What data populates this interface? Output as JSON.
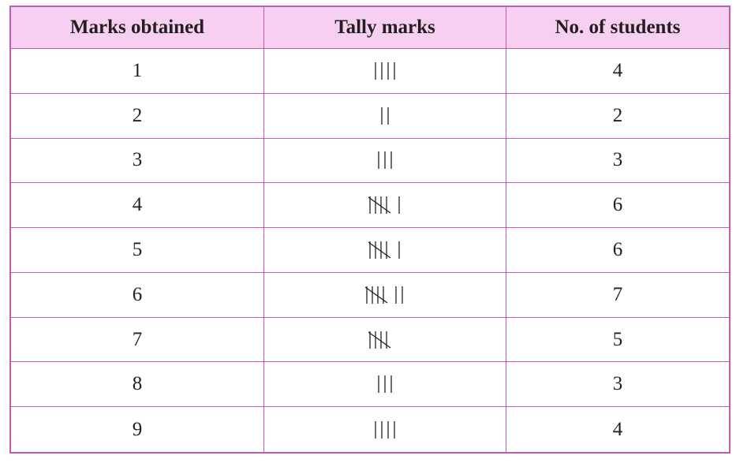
{
  "table": {
    "headers": [
      "Marks obtained",
      "Tally marks",
      "No. of students"
    ],
    "rows": [
      {
        "marks": "1",
        "tally": {
          "fives": 0,
          "ones": 4
        },
        "students": "4"
      },
      {
        "marks": "2",
        "tally": {
          "fives": 0,
          "ones": 2
        },
        "students": "2"
      },
      {
        "marks": "3",
        "tally": {
          "fives": 0,
          "ones": 3
        },
        "students": "3"
      },
      {
        "marks": "4",
        "tally": {
          "fives": 1,
          "ones": 1
        },
        "students": "6"
      },
      {
        "marks": "5",
        "tally": {
          "fives": 1,
          "ones": 1
        },
        "students": "6"
      },
      {
        "marks": "6",
        "tally": {
          "fives": 1,
          "ones": 2
        },
        "students": "7"
      },
      {
        "marks": "7",
        "tally": {
          "fives": 1,
          "ones": 0
        },
        "students": "5"
      },
      {
        "marks": "8",
        "tally": {
          "fives": 0,
          "ones": 3
        },
        "students": "3"
      },
      {
        "marks": "9",
        "tally": {
          "fives": 0,
          "ones": 4
        },
        "students": "4"
      }
    ]
  }
}
